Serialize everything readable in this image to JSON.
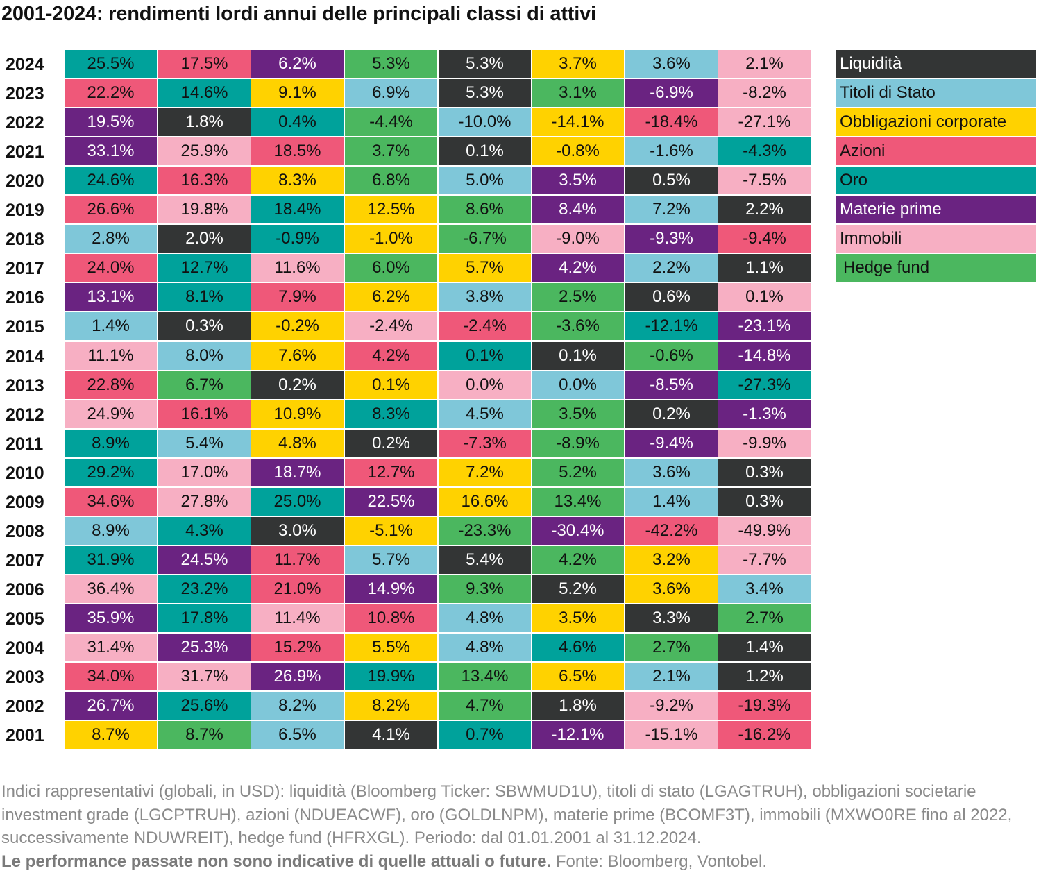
{
  "chart_data": {
    "type": "table",
    "title": "2001-2024: rendimenti lordi annui delle principali classi di attivi",
    "unit": "%",
    "legend": [
      {
        "name": "Liquidità",
        "color": "#333535",
        "text_color": "#ffffff"
      },
      {
        "name": "Titoli di Stato",
        "color": "#7fc7d9",
        "text_color": "#111111"
      },
      {
        "name": "Obbligazioni corporate",
        "color": "#ffd200",
        "text_color": "#111111"
      },
      {
        "name": "Azioni",
        "color": "#ef5879",
        "text_color": "#111111"
      },
      {
        "name": "Oro",
        "color": "#00a29b",
        "text_color": "#111111"
      },
      {
        "name": "Materie prime",
        "color": "#6a2381",
        "text_color": "#ffffff"
      },
      {
        "name": "Immobili",
        "color": "#f7afc3",
        "text_color": "#111111"
      },
      {
        "name": "Hedge fund",
        "color": "#4bb75f",
        "text_color": "#111111"
      }
    ],
    "legend_placement": "right",
    "rows": [
      {
        "year": "2024",
        "cells": [
          [
            "25.5%",
            "Oro"
          ],
          [
            "17.5%",
            "Azioni"
          ],
          [
            "6.2%",
            "Materie prime"
          ],
          [
            "5.3%",
            "Hedge fund"
          ],
          [
            "5.3%",
            "Liquidità"
          ],
          [
            "3.7%",
            "Obbligazioni corporate"
          ],
          [
            "3.6%",
            "Titoli di Stato"
          ],
          [
            "2.1%",
            "Immobili"
          ]
        ]
      },
      {
        "year": "2023",
        "cells": [
          [
            "22.2%",
            "Azioni"
          ],
          [
            "14.6%",
            "Oro"
          ],
          [
            "9.1%",
            "Obbligazioni corporate"
          ],
          [
            "6.9%",
            "Titoli di Stato"
          ],
          [
            "5.3%",
            "Liquidità"
          ],
          [
            "3.1%",
            "Hedge fund"
          ],
          [
            "-6.9%",
            "Materie prime"
          ],
          [
            "-8.2%",
            "Immobili"
          ]
        ]
      },
      {
        "year": "2022",
        "cells": [
          [
            "19.5%",
            "Materie prime"
          ],
          [
            "1.8%",
            "Liquidità"
          ],
          [
            "0.4%",
            "Oro"
          ],
          [
            "-4.4%",
            "Hedge fund"
          ],
          [
            "-10.0%",
            "Titoli di Stato"
          ],
          [
            "-14.1%",
            "Obbligazioni corporate"
          ],
          [
            "-18.4%",
            "Azioni"
          ],
          [
            "-27.1%",
            "Immobili"
          ]
        ]
      },
      {
        "year": "2021",
        "cells": [
          [
            "33.1%",
            "Materie prime"
          ],
          [
            "25.9%",
            "Immobili"
          ],
          [
            "18.5%",
            "Azioni"
          ],
          [
            "3.7%",
            "Hedge fund"
          ],
          [
            "0.1%",
            "Liquidità"
          ],
          [
            "-0.8%",
            "Obbligazioni corporate"
          ],
          [
            "-1.6%",
            "Titoli di Stato"
          ],
          [
            "-4.3%",
            "Oro"
          ]
        ]
      },
      {
        "year": "2020",
        "cells": [
          [
            "24.6%",
            "Oro"
          ],
          [
            "16.3%",
            "Azioni"
          ],
          [
            "8.3%",
            "Obbligazioni corporate"
          ],
          [
            "6.8%",
            "Hedge fund"
          ],
          [
            "5.0%",
            "Titoli di Stato"
          ],
          [
            "3.5%",
            "Materie prime"
          ],
          [
            "0.5%",
            "Liquidità"
          ],
          [
            "-7.5%",
            "Immobili"
          ]
        ]
      },
      {
        "year": "2019",
        "cells": [
          [
            "26.6%",
            "Azioni"
          ],
          [
            "19.8%",
            "Immobili"
          ],
          [
            "18.4%",
            "Oro"
          ],
          [
            "12.5%",
            "Obbligazioni corporate"
          ],
          [
            "8.6%",
            "Hedge fund"
          ],
          [
            "8.4%",
            "Materie prime"
          ],
          [
            "7.2%",
            "Titoli di Stato"
          ],
          [
            "2.2%",
            "Liquidità"
          ]
        ]
      },
      {
        "year": "2018",
        "cells": [
          [
            "2.8%",
            "Titoli di Stato"
          ],
          [
            "2.0%",
            "Liquidità"
          ],
          [
            "-0.9%",
            "Oro"
          ],
          [
            "-1.0%",
            "Obbligazioni corporate"
          ],
          [
            "-6.7%",
            "Hedge fund"
          ],
          [
            "-9.0%",
            "Immobili"
          ],
          [
            "-9.3%",
            "Materie prime"
          ],
          [
            "-9.4%",
            "Azioni"
          ]
        ]
      },
      {
        "year": "2017",
        "cells": [
          [
            "24.0%",
            "Azioni"
          ],
          [
            "12.7%",
            "Oro"
          ],
          [
            "11.6%",
            "Immobili"
          ],
          [
            "6.0%",
            "Hedge fund"
          ],
          [
            "5.7%",
            "Obbligazioni corporate"
          ],
          [
            "4.2%",
            "Materie prime"
          ],
          [
            "2.2%",
            "Titoli di Stato"
          ],
          [
            "1.1%",
            "Liquidità"
          ]
        ]
      },
      {
        "year": "2016",
        "cells": [
          [
            "13.1%",
            "Materie prime"
          ],
          [
            "8.1%",
            "Oro"
          ],
          [
            "7.9%",
            "Azioni"
          ],
          [
            "6.2%",
            "Obbligazioni corporate"
          ],
          [
            "3.8%",
            "Titoli di Stato"
          ],
          [
            "2.5%",
            "Hedge fund"
          ],
          [
            "0.6%",
            "Liquidità"
          ],
          [
            "0.1%",
            "Immobili"
          ]
        ]
      },
      {
        "year": "2015",
        "cells": [
          [
            "1.4%",
            "Titoli di Stato"
          ],
          [
            "0.3%",
            "Liquidità"
          ],
          [
            "-0.2%",
            "Obbligazioni corporate"
          ],
          [
            "-2.4%",
            "Immobili"
          ],
          [
            "-2.4%",
            "Azioni"
          ],
          [
            "-3.6%",
            "Hedge fund"
          ],
          [
            "-12.1%",
            "Oro"
          ],
          [
            "-23.1%",
            "Materie prime"
          ]
        ]
      },
      {
        "year": "2014",
        "cells": [
          [
            "11.1%",
            "Immobili"
          ],
          [
            "8.0%",
            "Titoli di Stato"
          ],
          [
            "7.6%",
            "Obbligazioni corporate"
          ],
          [
            "4.2%",
            "Azioni"
          ],
          [
            "0.1%",
            "Oro"
          ],
          [
            "0.1%",
            "Liquidità"
          ],
          [
            "-0.6%",
            "Hedge fund"
          ],
          [
            "-14.8%",
            "Materie prime"
          ]
        ]
      },
      {
        "year": "2013",
        "cells": [
          [
            "22.8%",
            "Azioni"
          ],
          [
            "6.7%",
            "Hedge fund"
          ],
          [
            "0.2%",
            "Liquidità"
          ],
          [
            "0.1%",
            "Obbligazioni corporate"
          ],
          [
            "0.0%",
            "Immobili"
          ],
          [
            "0.0%",
            "Titoli di Stato"
          ],
          [
            "-8.5%",
            "Materie prime"
          ],
          [
            "-27.3%",
            "Oro"
          ]
        ]
      },
      {
        "year": "2012",
        "cells": [
          [
            "24.9%",
            "Immobili"
          ],
          [
            "16.1%",
            "Azioni"
          ],
          [
            "10.9%",
            "Obbligazioni corporate"
          ],
          [
            "8.3%",
            "Oro"
          ],
          [
            "4.5%",
            "Titoli di Stato"
          ],
          [
            "3.5%",
            "Hedge fund"
          ],
          [
            "0.2%",
            "Liquidità"
          ],
          [
            "-1.3%",
            "Materie prime"
          ]
        ]
      },
      {
        "year": "2011",
        "cells": [
          [
            "8.9%",
            "Oro"
          ],
          [
            "5.4%",
            "Titoli di Stato"
          ],
          [
            "4.8%",
            "Obbligazioni corporate"
          ],
          [
            "0.2%",
            "Liquidità"
          ],
          [
            "-7.3%",
            "Azioni"
          ],
          [
            "-8.9%",
            "Hedge fund"
          ],
          [
            "-9.4%",
            "Materie prime"
          ],
          [
            "-9.9%",
            "Immobili"
          ]
        ]
      },
      {
        "year": "2010",
        "cells": [
          [
            "29.2%",
            "Oro"
          ],
          [
            "17.0%",
            "Immobili"
          ],
          [
            "18.7%",
            "Materie prime"
          ],
          [
            "12.7%",
            "Azioni"
          ],
          [
            "7.2%",
            "Obbligazioni corporate"
          ],
          [
            "5.2%",
            "Hedge fund"
          ],
          [
            "3.6%",
            "Titoli di Stato"
          ],
          [
            "0.3%",
            "Liquidità"
          ]
        ]
      },
      {
        "year": "2009",
        "cells": [
          [
            "34.6%",
            "Azioni"
          ],
          [
            "27.8%",
            "Immobili"
          ],
          [
            "25.0%",
            "Oro"
          ],
          [
            "22.5%",
            "Materie prime"
          ],
          [
            "16.6%",
            "Obbligazioni corporate"
          ],
          [
            "13.4%",
            "Hedge fund"
          ],
          [
            "1.4%",
            "Titoli di Stato"
          ],
          [
            "0.3%",
            "Liquidità"
          ]
        ]
      },
      {
        "year": "2008",
        "cells": [
          [
            "8.9%",
            "Titoli di Stato"
          ],
          [
            "4.3%",
            "Oro"
          ],
          [
            "3.0%",
            "Liquidità"
          ],
          [
            "-5.1%",
            "Obbligazioni corporate"
          ],
          [
            "-23.3%",
            "Hedge fund"
          ],
          [
            "-30.4%",
            "Materie prime"
          ],
          [
            "-42.2%",
            "Azioni"
          ],
          [
            "-49.9%",
            "Immobili"
          ]
        ]
      },
      {
        "year": "2007",
        "cells": [
          [
            "31.9%",
            "Oro"
          ],
          [
            "24.5%",
            "Materie prime"
          ],
          [
            "11.7%",
            "Azioni"
          ],
          [
            "5.7%",
            "Titoli di Stato"
          ],
          [
            "5.4%",
            "Liquidità"
          ],
          [
            "4.2%",
            "Hedge fund"
          ],
          [
            "3.2%",
            "Obbligazioni corporate"
          ],
          [
            "-7.7%",
            "Immobili"
          ]
        ]
      },
      {
        "year": "2006",
        "cells": [
          [
            "36.4%",
            "Immobili"
          ],
          [
            "23.2%",
            "Oro"
          ],
          [
            "21.0%",
            "Azioni"
          ],
          [
            "14.9%",
            "Materie prime"
          ],
          [
            "9.3%",
            "Hedge fund"
          ],
          [
            "5.2%",
            "Liquidità"
          ],
          [
            "3.6%",
            "Obbligazioni corporate"
          ],
          [
            "3.4%",
            "Titoli di Stato"
          ]
        ]
      },
      {
        "year": "2005",
        "cells": [
          [
            "35.9%",
            "Materie prime"
          ],
          [
            "17.8%",
            "Oro"
          ],
          [
            "11.4%",
            "Immobili"
          ],
          [
            "10.8%",
            "Azioni"
          ],
          [
            "4.8%",
            "Titoli di Stato"
          ],
          [
            "3.5%",
            "Obbligazioni corporate"
          ],
          [
            "3.3%",
            "Liquidità"
          ],
          [
            "2.7%",
            "Hedge fund"
          ]
        ]
      },
      {
        "year": "2004",
        "cells": [
          [
            "31.4%",
            "Immobili"
          ],
          [
            "25.3%",
            "Materie prime"
          ],
          [
            "15.2%",
            "Azioni"
          ],
          [
            "5.5%",
            "Obbligazioni corporate"
          ],
          [
            "4.8%",
            "Titoli di Stato"
          ],
          [
            "4.6%",
            "Oro"
          ],
          [
            "2.7%",
            "Hedge fund"
          ],
          [
            "1.4%",
            "Liquidità"
          ]
        ]
      },
      {
        "year": "2003",
        "cells": [
          [
            "34.0%",
            "Azioni"
          ],
          [
            "31.7%",
            "Immobili"
          ],
          [
            "26.9%",
            "Materie prime"
          ],
          [
            "19.9%",
            "Oro"
          ],
          [
            "13.4%",
            "Hedge fund"
          ],
          [
            "6.5%",
            "Obbligazioni corporate"
          ],
          [
            "2.1%",
            "Titoli di Stato"
          ],
          [
            "1.2%",
            "Liquidità"
          ]
        ]
      },
      {
        "year": "2002",
        "cells": [
          [
            "26.7%",
            "Materie prime"
          ],
          [
            "25.6%",
            "Oro"
          ],
          [
            "8.2%",
            "Titoli di Stato"
          ],
          [
            "8.2%",
            "Obbligazioni corporate"
          ],
          [
            "4.7%",
            "Hedge fund"
          ],
          [
            "1.8%",
            "Liquidità"
          ],
          [
            "-9.2%",
            "Immobili"
          ],
          [
            "-19.3%",
            "Azioni"
          ]
        ]
      },
      {
        "year": "2001",
        "cells": [
          [
            "8.7%",
            "Obbligazioni corporate"
          ],
          [
            "8.7%",
            "Hedge fund"
          ],
          [
            "6.5%",
            "Titoli di Stato"
          ],
          [
            "4.1%",
            "Liquidità"
          ],
          [
            "0.7%",
            "Oro"
          ],
          [
            "-12.1%",
            "Materie prime"
          ],
          [
            "-15.1%",
            "Immobili"
          ],
          [
            "-16.2%",
            "Azioni"
          ]
        ]
      }
    ]
  },
  "notes": {
    "text": "Indici rappresentativi (globali, in USD): liquidità (Bloomberg Ticker: SBWMUD1U), titoli di stato (LGAGTRUH), obbligazioni societarie investment grade (LGCPTRUH), azioni (NDUEACWF), oro (GOLDLNPM), materie prime (BCOMF3T), immobili (MXWO0RE fino al 2022, successivamente NDUWREIT), hedge fund (HFRXGL). Periodo: dal 01.01.2001 al 31.12.2024.",
    "disclaimer": "Le performance passate non sono indicative di quelle attuali o future.",
    "source": " Fonte: Bloomberg, Vontobel."
  }
}
